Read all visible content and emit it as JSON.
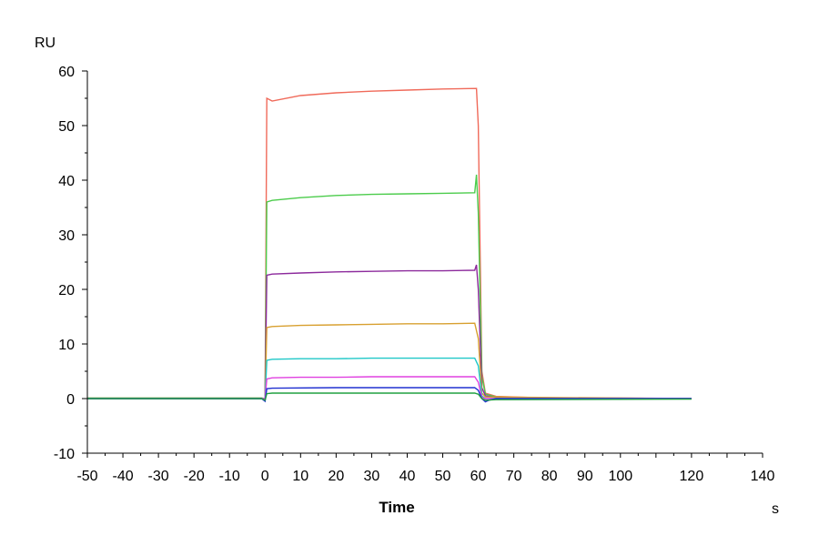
{
  "chart_data": {
    "type": "line",
    "xlabel": "Time",
    "x_unit": "s",
    "y_unit": "RU",
    "xlim": [
      -50,
      140
    ],
    "ylim": [
      -10,
      60
    ],
    "x_ticks": [
      -50,
      -40,
      -30,
      -20,
      -10,
      0,
      10,
      20,
      30,
      40,
      50,
      60,
      70,
      80,
      90,
      100,
      120,
      140
    ],
    "y_ticks": [
      -10,
      0,
      10,
      20,
      30,
      40,
      50,
      60
    ],
    "grid": false,
    "legend": "none",
    "series": [
      {
        "color": "#f06a5a",
        "points": [
          [
            -50,
            0.1
          ],
          [
            -1,
            0.1
          ],
          [
            0,
            0
          ],
          [
            0.5,
            55
          ],
          [
            2,
            54.5
          ],
          [
            10,
            55.5
          ],
          [
            20,
            56
          ],
          [
            30,
            56.3
          ],
          [
            40,
            56.5
          ],
          [
            50,
            56.7
          ],
          [
            59.5,
            56.8
          ],
          [
            60,
            50
          ],
          [
            61,
            5
          ],
          [
            62,
            1
          ],
          [
            65,
            0.4
          ],
          [
            80,
            0.1
          ],
          [
            120,
            0
          ]
        ]
      },
      {
        "color": "#4ccc4c",
        "points": [
          [
            -50,
            0.1
          ],
          [
            -1,
            0.1
          ],
          [
            0,
            0
          ],
          [
            0.5,
            36
          ],
          [
            2,
            36.3
          ],
          [
            10,
            36.8
          ],
          [
            20,
            37.2
          ],
          [
            30,
            37.4
          ],
          [
            40,
            37.5
          ],
          [
            50,
            37.6
          ],
          [
            59,
            37.7
          ],
          [
            59.5,
            41
          ],
          [
            60,
            34
          ],
          [
            61,
            4
          ],
          [
            62,
            0.8
          ],
          [
            65,
            0.3
          ],
          [
            80,
            0
          ],
          [
            120,
            0
          ]
        ]
      },
      {
        "color": "#8c2a9c",
        "points": [
          [
            -50,
            0
          ],
          [
            -1,
            0
          ],
          [
            0,
            0
          ],
          [
            0.5,
            22.6
          ],
          [
            2,
            22.8
          ],
          [
            10,
            23
          ],
          [
            20,
            23.2
          ],
          [
            30,
            23.3
          ],
          [
            40,
            23.4
          ],
          [
            50,
            23.4
          ],
          [
            59,
            23.5
          ],
          [
            59.5,
            24.5
          ],
          [
            60,
            20
          ],
          [
            61,
            2
          ],
          [
            62,
            0.5
          ],
          [
            65,
            0.2
          ],
          [
            120,
            0
          ]
        ]
      },
      {
        "color": "#d8a030",
        "points": [
          [
            -50,
            0
          ],
          [
            -1,
            0
          ],
          [
            0,
            0
          ],
          [
            0.5,
            13
          ],
          [
            2,
            13.2
          ],
          [
            10,
            13.4
          ],
          [
            20,
            13.5
          ],
          [
            30,
            13.6
          ],
          [
            40,
            13.7
          ],
          [
            50,
            13.7
          ],
          [
            59,
            13.8
          ],
          [
            60,
            11
          ],
          [
            61,
            1
          ],
          [
            62,
            0.3
          ],
          [
            120,
            0
          ]
        ]
      },
      {
        "color": "#20c8c8",
        "points": [
          [
            -50,
            0
          ],
          [
            -1,
            0
          ],
          [
            0,
            0
          ],
          [
            0.5,
            7
          ],
          [
            2,
            7.2
          ],
          [
            10,
            7.3
          ],
          [
            20,
            7.3
          ],
          [
            30,
            7.4
          ],
          [
            40,
            7.4
          ],
          [
            50,
            7.4
          ],
          [
            59,
            7.4
          ],
          [
            60,
            6
          ],
          [
            61,
            0.5
          ],
          [
            62,
            0
          ],
          [
            120,
            0
          ]
        ]
      },
      {
        "color": "#e040e0",
        "points": [
          [
            -50,
            0
          ],
          [
            -1,
            0
          ],
          [
            0,
            0
          ],
          [
            0.5,
            3.6
          ],
          [
            2,
            3.8
          ],
          [
            10,
            3.9
          ],
          [
            20,
            3.9
          ],
          [
            30,
            4
          ],
          [
            40,
            4
          ],
          [
            50,
            4
          ],
          [
            59,
            4
          ],
          [
            60,
            3
          ],
          [
            61,
            0.2
          ],
          [
            62,
            0
          ],
          [
            120,
            0
          ]
        ]
      },
      {
        "color": "#2030d0",
        "points": [
          [
            -50,
            0
          ],
          [
            -1,
            0
          ],
          [
            0,
            -0.5
          ],
          [
            0.5,
            1.8
          ],
          [
            2,
            1.9
          ],
          [
            20,
            2
          ],
          [
            40,
            2
          ],
          [
            59,
            2
          ],
          [
            60,
            1.5
          ],
          [
            61,
            0
          ],
          [
            62,
            -0.6
          ],
          [
            63,
            -0.3
          ],
          [
            65,
            0
          ],
          [
            120,
            0
          ]
        ]
      },
      {
        "color": "#20a040",
        "points": [
          [
            -50,
            0
          ],
          [
            -1,
            0
          ],
          [
            0,
            -0.3
          ],
          [
            0.5,
            0.9
          ],
          [
            2,
            1
          ],
          [
            30,
            1
          ],
          [
            59,
            1
          ],
          [
            60,
            0.8
          ],
          [
            61,
            0
          ],
          [
            62,
            -0.3
          ],
          [
            65,
            -0.2
          ],
          [
            120,
            -0.1
          ]
        ]
      }
    ]
  }
}
